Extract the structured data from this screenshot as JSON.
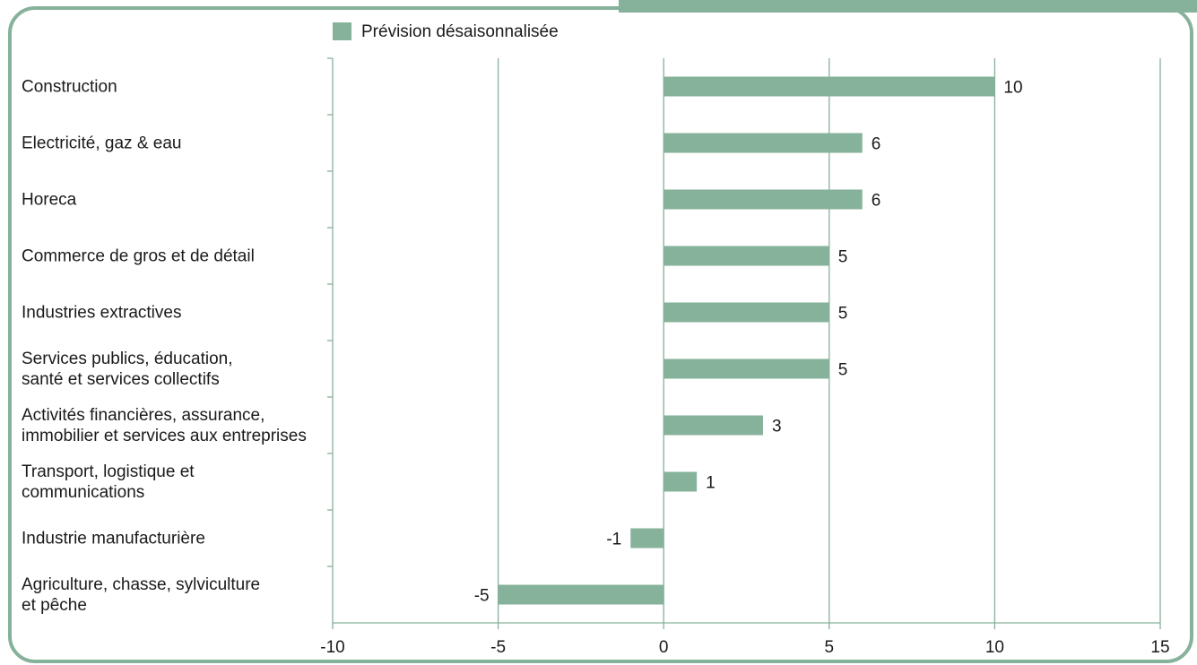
{
  "colors": {
    "bar": "#86b19a",
    "frame": "#86b19a",
    "axis": "#86b19a",
    "grid": "#86b19a",
    "text": "#1a1a1a"
  },
  "chart_data": {
    "type": "bar",
    "orientation": "horizontal",
    "title": "",
    "xlabel": "",
    "ylabel": "",
    "legend": {
      "position": "top",
      "entries": [
        "Prévision désaisonnalisée"
      ]
    },
    "xlim": [
      -10,
      15
    ],
    "xticks": [
      -10,
      -5,
      0,
      5,
      10,
      15
    ],
    "grid": "vertical",
    "categories": [
      [
        "Construction"
      ],
      [
        "Electricité, gaz & eau"
      ],
      [
        "Horeca"
      ],
      [
        "Commerce de gros et de détail"
      ],
      [
        "Industries extractives"
      ],
      [
        "Services publics, éducation,",
        "santé et services collectifs"
      ],
      [
        "Activités financières, assurance,",
        "immobilier et services aux entreprises"
      ],
      [
        "Transport, logistique et",
        "communications"
      ],
      [
        "Industrie manufacturière"
      ],
      [
        "Agriculture, chasse, sylviculture",
        "et pêche"
      ]
    ],
    "series": [
      {
        "name": "Prévision désaisonnalisée",
        "values": [
          10,
          6,
          6,
          5,
          5,
          5,
          3,
          1,
          -1,
          -5
        ]
      }
    ]
  }
}
